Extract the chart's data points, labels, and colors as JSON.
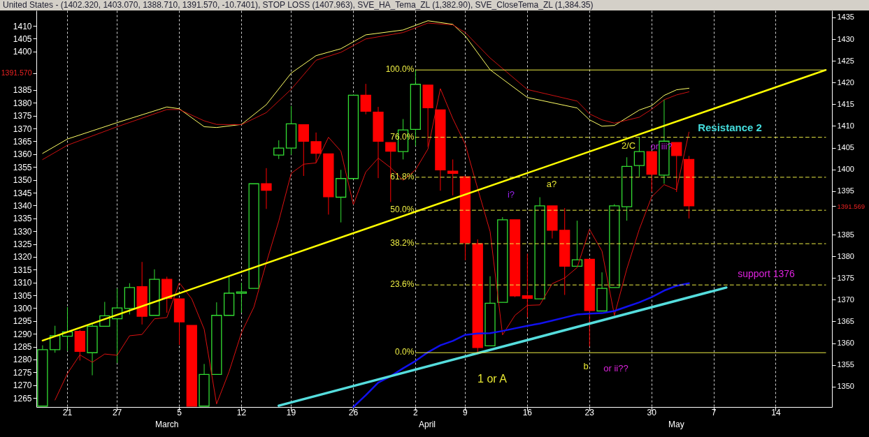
{
  "chart_data": {
    "type": "candlestick",
    "title": "United States - (1402.320, 1403.070, 1388.710, 1391.570, -10.7401), STOP LOSS (1407.963), SVE_HA_Tema_ZL (1,382.90), SVE_CloseTema_ZL (1,384.35)",
    "categories": [
      null,
      null,
      "21",
      null,
      null,
      null,
      "27",
      null,
      null,
      null,
      null,
      "5",
      null,
      null,
      null,
      null,
      "12",
      null,
      null,
      null,
      "19",
      null,
      null,
      null,
      null,
      "26",
      null,
      null,
      null,
      null,
      "2",
      null,
      null,
      null,
      "9",
      null,
      null,
      null,
      null,
      "16",
      null,
      null,
      null,
      null,
      "23",
      null,
      null,
      null,
      null,
      "30",
      null,
      null,
      null,
      null,
      "7",
      null,
      null,
      null,
      null,
      "14",
      null,
      null,
      null,
      null
    ],
    "ylim": [
      1261.5,
      1416
    ],
    "yticks": [
      1265,
      1270,
      1275,
      1280,
      1285,
      1290,
      1295,
      1300,
      1305,
      1310,
      1315,
      1320,
      1325,
      1330,
      1335,
      1340,
      1345,
      1350,
      1355,
      1360,
      1365,
      1370,
      1375,
      1380,
      1385,
      {
        "value": 1391.57,
        "label": "1391.570"
      },
      1400,
      1405,
      1410
    ],
    "y2lim": [
      1345.3,
      1436.6
    ],
    "y2ticks": [
      1350,
      1355,
      1360,
      1365,
      1370,
      1375,
      1380,
      1385,
      {
        "value": 1391.569,
        "label": "1391.569"
      },
      1395,
      1400,
      1405,
      1410,
      1415,
      1420,
      1425,
      1430,
      1435
    ],
    "grid": "x",
    "series": [
      {
        "type": "candlestick",
        "axis": "y2",
        "ohlc": [
          [
            1345.5,
            1359.5,
            1345.5,
            1358.5
          ],
          [
            1358.5,
            1364.0,
            1357.8,
            1361.7
          ],
          [
            1361.6,
            1368.3,
            1358.2,
            1362.6
          ],
          [
            1362.7,
            1363.1,
            1356.0,
            1358.1
          ],
          [
            1357.8,
            1364.6,
            1352.6,
            1363.9
          ],
          [
            1363.9,
            1369.5,
            1363.9,
            1366.3
          ],
          [
            1365.6,
            1372.6,
            1355.4,
            1368.1
          ],
          [
            1368.0,
            1373.8,
            1366.6,
            1372.8
          ],
          [
            1373.0,
            1378.7,
            1364.3,
            1366.2
          ],
          [
            1366.4,
            1377.0,
            1366.4,
            1374.7
          ],
          [
            1374.7,
            1375.3,
            1367.0,
            1370.3
          ],
          [
            1370.2,
            1370.2,
            1359.6,
            1364.9
          ],
          [
            1364.1,
            1364.1,
            1345.5,
            1345.5
          ],
          [
            1345.5,
            1355.2,
            1345.5,
            1352.8
          ],
          [
            1352.8,
            1369.4,
            1352.8,
            1366.4
          ],
          [
            1366.4,
            1375.3,
            1366.4,
            1371.5
          ],
          [
            1371.5,
            1373.9,
            1367.0,
            1371.8
          ],
          [
            1372.6,
            1396.7,
            1372.6,
            1396.7
          ],
          [
            1396.7,
            1400.3,
            1390.9,
            1395.2
          ],
          [
            1403.3,
            1406.7,
            1402.4,
            1404.9
          ],
          [
            1404.9,
            1414.6,
            1403.4,
            1410.5
          ],
          [
            1410.3,
            1410.3,
            1398.5,
            1406.5
          ],
          [
            1406.4,
            1408.5,
            1401.5,
            1403.7
          ],
          [
            1403.6,
            1403.6,
            1389.6,
            1393.7
          ],
          [
            1393.6,
            1399.9,
            1387.8,
            1397.9
          ],
          [
            1397.9,
            1417.1,
            1397.9,
            1417.1
          ],
          [
            1417.1,
            1419.7,
            1412.7,
            1413.4
          ],
          [
            1413.2,
            1414.4,
            1398.0,
            1406.5
          ],
          [
            1406.2,
            1406.2,
            1392.5,
            1404.2
          ],
          [
            1404.1,
            1411.6,
            1402.3,
            1409.1
          ],
          [
            1409.2,
            1422.9,
            1405.4,
            1419.6
          ],
          [
            1419.4,
            1419.4,
            1405.2,
            1414.2
          ],
          [
            1413.7,
            1413.7,
            1395.1,
            1399.9
          ],
          [
            1399.6,
            1402.3,
            1394.0,
            1399.1
          ],
          [
            1398.3,
            1398.3,
            1379.1,
            1383.1
          ],
          [
            1382.9,
            1383.9,
            1357.9,
            1359.0
          ],
          [
            1359.4,
            1375.4,
            1359.4,
            1369.2
          ],
          [
            1369.4,
            1389.0,
            1369.4,
            1388.4
          ],
          [
            1388.4,
            1388.4,
            1370.6,
            1370.9
          ],
          [
            1370.9,
            1380.6,
            1365.9,
            1370.3
          ],
          [
            1370.2,
            1393.6,
            1370.2,
            1391.6
          ],
          [
            1391.6,
            1391.6,
            1384.1,
            1386.0
          ],
          [
            1386.0,
            1391.1,
            1371.1,
            1377.7
          ],
          [
            1377.7,
            1388.2,
            1377.7,
            1379.2
          ],
          [
            1379.3,
            1379.3,
            1359.2,
            1367.5
          ],
          [
            1367.4,
            1376.3,
            1367.4,
            1372.6
          ],
          [
            1372.8,
            1392.0,
            1372.8,
            1391.6
          ],
          [
            1391.4,
            1402.8,
            1388.2,
            1400.7
          ],
          [
            1400.9,
            1407.5,
            1398.3,
            1404.1
          ],
          [
            1404.1,
            1404.1,
            1394.8,
            1398.9
          ],
          [
            1398.7,
            1416.0,
            1396.7,
            1406.5
          ],
          [
            1406.2,
            1406.2,
            1394.8,
            1403.2
          ],
          [
            1402.3,
            1403.1,
            1388.7,
            1391.6
          ],
          null,
          null,
          null,
          null,
          null,
          null,
          null,
          null,
          null,
          null,
          null
        ],
        "colors": [
          "#33dd33",
          "#33dd33",
          "#33dd33",
          "#ff0000",
          "#33dd33",
          "#33dd33",
          "#33dd33",
          "#33dd33",
          "#ff0000",
          "#33dd33",
          "#ff0000",
          "#ff0000",
          "#ff0000",
          "#33dd33",
          "#33dd33",
          "#33dd33",
          "#33dd33",
          "#33dd33",
          "#ff0000",
          "#33dd33",
          "#33dd33",
          "#ff0000",
          "#ff0000",
          "#ff0000",
          "#33dd33",
          "#33dd33",
          "#ff0000",
          "#ff0000",
          "#ff0000",
          "#33dd33",
          "#33dd33",
          "#ff0000",
          "#ff0000",
          "#ff0000",
          "#ff0000",
          "#ff0000",
          "#33dd33",
          "#33dd33",
          "#ff0000",
          "#ff0000",
          "#33dd33",
          "#ff0000",
          "#ff0000",
          "#33dd33",
          "#ff0000",
          "#33dd33",
          "#33dd33",
          "#33dd33",
          "#33dd33",
          "#ff0000",
          "#33dd33",
          "#ff0000",
          "#ff0000",
          null,
          null,
          null,
          null,
          null,
          null,
          null,
          null,
          null,
          null,
          null
        ]
      },
      {
        "type": "line",
        "color": "#ffff66",
        "values": [
          1360.3,
          null,
          1365.9,
          null,
          null,
          null,
          1372.3,
          null,
          null,
          null,
          1378.4,
          1377.7,
          null,
          1370.7,
          1370.4,
          null,
          1371.6,
          null,
          1379.3,
          null,
          1391.6,
          null,
          1398.4,
          null,
          1401.1,
          null,
          1406.5,
          null,
          null,
          1408.4,
          null,
          1412.0,
          null,
          1410.6,
          1406.1,
          null,
          1392.9,
          null,
          null,
          1382.1,
          null,
          null,
          null,
          1378.0,
          1373.4,
          1370.9,
          1371.2,
          null,
          1377.2,
          1378.9,
          1382.9,
          1385.1,
          1385.7,
          null,
          null,
          null,
          null,
          null,
          null,
          null,
          null,
          null,
          null,
          null
        ]
      },
      {
        "type": "line",
        "color": "#cc1111",
        "values": [
          1357.9,
          null,
          1363.5,
          null,
          null,
          null,
          1370.7,
          null,
          null,
          null,
          1377.4,
          1377.4,
          null,
          1373.0,
          1371.6,
          null,
          1371.5,
          null,
          1376.2,
          null,
          1385.3,
          null,
          1396.6,
          null,
          1399.7,
          null,
          1404.9,
          null,
          null,
          1407.4,
          null,
          1411.1,
          null,
          1410.4,
          1407.4,
          null,
          1397.5,
          null,
          null,
          1385.2,
          null,
          null,
          null,
          1380.7,
          1375.7,
          1373.4,
          1372.1,
          null,
          1374.4,
          1377.5,
          1381.2,
          1383.1,
          1384.3,
          null,
          null,
          null,
          null,
          null,
          null,
          null,
          null,
          null,
          null,
          null
        ]
      },
      {
        "type": "line",
        "axis": "y2",
        "color": "#dd1111",
        "values": [
          null,
          1346.9,
          1353.0,
          1357.3,
          1355.6,
          1357.5,
          1357.2,
          1361.7,
          1362.0,
          1365.6,
          1365.9,
          1373.9,
          1370.2,
          1363.2,
          1346.0,
          1353.4,
          1362.4,
          1368.3,
          1378.5,
          1388.1,
          1399.1,
          1401.2,
          1401.5,
          1407.4,
          1404.2,
          1391.9,
          1399.4,
          1402.6,
          1400.4,
          1397.5,
          1399.9,
          1404.7,
          1418.6,
          1411.7,
          1405.8,
          1395.6,
          1385.7,
          1361.9,
          1366.4,
          1368.7,
          1368.8,
          1373.7,
          1375.0,
          1377.4,
          1386.2,
          1381.2,
          1366.4,
          1377.1,
          1386.2,
          1393.7,
          1396.5,
          1395.3,
          1408.6,
          null,
          null,
          null,
          null,
          null,
          null,
          null,
          null,
          null,
          null,
          null
        ]
      },
      {
        "type": "line",
        "axis": "y2",
        "color": "#1111ee",
        "values": [
          null,
          null,
          null,
          null,
          null,
          null,
          null,
          null,
          null,
          null,
          null,
          null,
          null,
          null,
          null,
          null,
          null,
          null,
          null,
          null,
          null,
          null,
          null,
          null,
          null,
          1345.3,
          1348.0,
          1350.9,
          1352.4,
          1354.2,
          1355.9,
          1357.9,
          1359.5,
          1360.5,
          1361.9,
          1362.2,
          1362.3,
          1362.8,
          1363.4,
          1364.0,
          1364.5,
          1365.2,
          1365.9,
          1366.6,
          1366.8,
          1366.9,
          1367.4,
          1368.4,
          1369.4,
          1370.6,
          1372.1,
          1373.2,
          1373.8,
          null,
          null,
          null,
          null,
          null,
          null,
          null,
          null,
          null,
          null,
          null
        ]
      },
      {
        "type": "line",
        "axis": "y2",
        "color": "#ffff00",
        "values": [
          1360.6,
          null,
          null,
          null,
          null,
          null,
          null,
          null,
          null,
          null,
          null,
          null,
          null,
          null,
          null,
          null,
          null,
          null,
          null,
          null,
          null,
          null,
          null,
          null,
          null,
          null,
          null,
          null,
          null,
          null,
          null,
          null,
          null,
          null,
          null,
          null,
          null,
          null,
          null,
          null,
          null,
          null,
          null,
          null,
          null,
          null,
          null,
          null,
          null,
          null,
          null,
          null,
          null,
          null,
          null,
          null,
          null,
          null,
          null,
          null,
          null,
          null,
          null,
          1422.9
        ]
      },
      {
        "type": "line",
        "axis": "y2",
        "color": "#55dddd",
        "values": [
          null,
          null,
          null,
          null,
          null,
          null,
          null,
          null,
          null,
          null,
          null,
          null,
          null,
          null,
          null,
          null,
          null,
          null,
          null,
          1345.6,
          null,
          null,
          null,
          null,
          null,
          null,
          null,
          null,
          null,
          null,
          null,
          null,
          null,
          null,
          null,
          null,
          null,
          null,
          null,
          null,
          null,
          null,
          null,
          null,
          null,
          null,
          null,
          null,
          null,
          null,
          null,
          null,
          null,
          null,
          null,
          1372.8,
          null,
          null,
          null,
          null,
          null,
          null,
          null,
          null
        ]
      },
      {
        "type": "line",
        "axis": "y2",
        "name": "100.0%",
        "color": "#eeee44",
        "values": [
          null,
          null,
          null,
          null,
          null,
          null,
          null,
          null,
          null,
          null,
          null,
          null,
          null,
          null,
          null,
          null,
          null,
          null,
          null,
          null,
          null,
          null,
          null,
          null,
          null,
          null,
          null,
          null,
          null,
          null,
          1422.9,
          null,
          null,
          null,
          null,
          null,
          null,
          null,
          null,
          null,
          null,
          null,
          null,
          null,
          null,
          null,
          null,
          null,
          null,
          null,
          null,
          null,
          null,
          null,
          null,
          null,
          null,
          null,
          null,
          null,
          null,
          null,
          null,
          1422.9
        ]
      },
      {
        "type": "line",
        "axis": "y2",
        "name": "76.0%",
        "color": "#eeee44",
        "line_style": "dashed",
        "values": [
          null,
          null,
          null,
          null,
          null,
          null,
          null,
          null,
          null,
          null,
          null,
          null,
          null,
          null,
          null,
          null,
          null,
          null,
          null,
          null,
          null,
          null,
          null,
          null,
          null,
          null,
          null,
          null,
          null,
          null,
          1407.4,
          null,
          null,
          null,
          null,
          null,
          null,
          null,
          null,
          null,
          null,
          null,
          null,
          null,
          null,
          null,
          null,
          null,
          null,
          null,
          null,
          null,
          null,
          null,
          null,
          null,
          null,
          null,
          null,
          null,
          null,
          null,
          null,
          1407.4
        ]
      },
      {
        "type": "line",
        "axis": "y2",
        "name": "61.8%",
        "color": "#eeee44",
        "line_style": "dashed",
        "values": [
          null,
          null,
          null,
          null,
          null,
          null,
          null,
          null,
          null,
          null,
          null,
          null,
          null,
          null,
          null,
          null,
          null,
          null,
          null,
          null,
          null,
          null,
          null,
          null,
          null,
          null,
          null,
          null,
          null,
          null,
          1398.2,
          null,
          null,
          null,
          null,
          null,
          null,
          null,
          null,
          null,
          null,
          null,
          null,
          null,
          null,
          null,
          null,
          null,
          null,
          null,
          null,
          null,
          null,
          null,
          null,
          null,
          null,
          null,
          null,
          null,
          null,
          null,
          null,
          1398.2
        ]
      },
      {
        "type": "line",
        "axis": "y2",
        "name": "50.0%",
        "color": "#eeee44",
        "line_style": "dashed",
        "values": [
          null,
          null,
          null,
          null,
          null,
          null,
          null,
          null,
          null,
          null,
          null,
          null,
          null,
          null,
          null,
          null,
          null,
          null,
          null,
          null,
          null,
          null,
          null,
          null,
          null,
          null,
          null,
          null,
          null,
          null,
          1390.6,
          null,
          null,
          null,
          null,
          null,
          null,
          null,
          null,
          null,
          null,
          null,
          null,
          null,
          null,
          null,
          null,
          null,
          null,
          null,
          null,
          null,
          null,
          null,
          null,
          null,
          null,
          null,
          null,
          null,
          null,
          null,
          null,
          1390.6
        ]
      },
      {
        "type": "line",
        "axis": "y2",
        "name": "38.2%",
        "color": "#eeee44",
        "line_style": "dashed",
        "values": [
          null,
          null,
          null,
          null,
          null,
          null,
          null,
          null,
          null,
          null,
          null,
          null,
          null,
          null,
          null,
          null,
          null,
          null,
          null,
          null,
          null,
          null,
          null,
          null,
          null,
          null,
          null,
          null,
          null,
          null,
          1382.9,
          null,
          null,
          null,
          null,
          null,
          null,
          null,
          null,
          null,
          null,
          null,
          null,
          null,
          null,
          null,
          null,
          null,
          null,
          null,
          null,
          null,
          null,
          null,
          null,
          null,
          null,
          null,
          null,
          null,
          null,
          null,
          null,
          1382.9
        ]
      },
      {
        "type": "line",
        "axis": "y2",
        "name": "23.6%",
        "color": "#eeee44",
        "line_style": "dashed",
        "values": [
          null,
          null,
          null,
          null,
          null,
          null,
          null,
          null,
          null,
          null,
          null,
          null,
          null,
          null,
          null,
          null,
          null,
          null,
          null,
          null,
          null,
          null,
          null,
          null,
          null,
          null,
          null,
          null,
          null,
          null,
          1373.4,
          null,
          null,
          null,
          null,
          null,
          null,
          null,
          null,
          null,
          null,
          null,
          null,
          null,
          null,
          null,
          null,
          null,
          null,
          null,
          null,
          null,
          null,
          null,
          null,
          null,
          null,
          null,
          null,
          null,
          null,
          null,
          null,
          1373.4
        ]
      },
      {
        "type": "line",
        "axis": "y2",
        "name": "0.0%",
        "color": "#eeee44",
        "values": [
          null,
          null,
          null,
          null,
          null,
          null,
          null,
          null,
          null,
          null,
          null,
          null,
          null,
          null,
          null,
          null,
          null,
          null,
          null,
          null,
          null,
          null,
          null,
          null,
          null,
          null,
          null,
          null,
          null,
          null,
          1357.8,
          null,
          null,
          null,
          null,
          null,
          null,
          null,
          null,
          null,
          null,
          null,
          null,
          null,
          null,
          null,
          null,
          null,
          null,
          null,
          null,
          null,
          null,
          null,
          null,
          null,
          null,
          null,
          null,
          null,
          null,
          null,
          null,
          1357.8
        ]
      }
    ],
    "annotations": [
      "Resistance 2",
      "support 1376",
      "2/C",
      "or iii?",
      "i?",
      "a?",
      "b",
      "or ii??",
      "1 or A",
      "March",
      "April",
      "May"
    ]
  }
}
